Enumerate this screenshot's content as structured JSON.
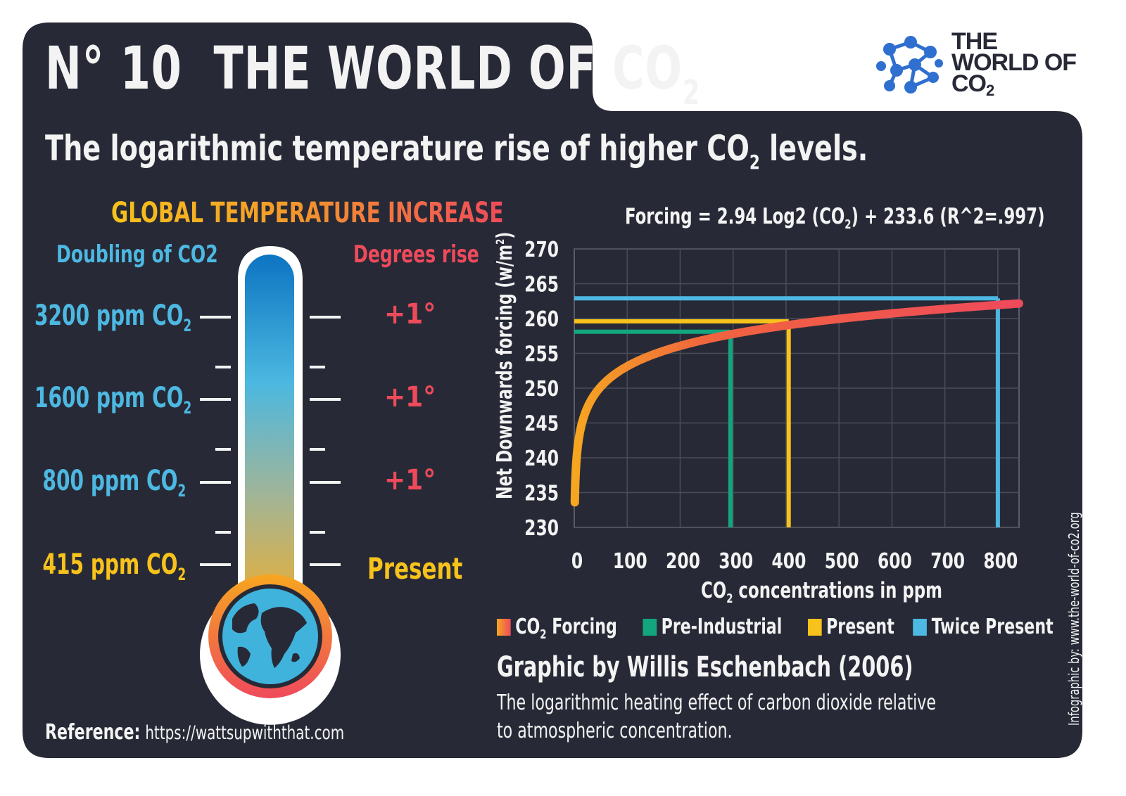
{
  "header": {
    "number": "N° 10",
    "title_main": "THE WORLD OF CO",
    "title_sub": "2",
    "logo_line1": "THE",
    "logo_line2": "WORLD OF",
    "logo_line3": "CO",
    "logo_sub": "2"
  },
  "subtitle": {
    "before": "The logarithmic temperature rise of higher CO",
    "sub": "2",
    "after": " levels."
  },
  "thermometer": {
    "title": "GLOBAL TEMPERATURE INCREASE",
    "left_header": "Doubling of CO2",
    "right_header": "Degrees rise",
    "levels": [
      {
        "label": "3200 ppm CO",
        "sub": "2",
        "rise": "+1°"
      },
      {
        "label": "1600 ppm CO",
        "sub": "2",
        "rise": "+1°"
      },
      {
        "label": "800 ppm CO",
        "sub": "2",
        "rise": "+1°"
      },
      {
        "label": "415 ppm CO",
        "sub": "2",
        "rise": "Present"
      }
    ],
    "icon": "earth-globe-icon"
  },
  "reference": {
    "label": "Reference:",
    "url": "https://wattsupwiththat.com"
  },
  "chart_data": {
    "type": "line",
    "title": "Forcing = 2.94 Log2 (CO2) + 233.6 (R^2=.997)",
    "title_parts": {
      "a": "Forcing = 2.94 Log2 (CO",
      "sub": "2",
      "b": ") + 233.6 (R^2=.997)"
    },
    "xlabel": "CO2 concentrations in ppm",
    "xlabel_parts": {
      "a": "CO",
      "sub": "2",
      "b": " concentrations in ppm"
    },
    "ylabel": "Net Downwards forcing (w/m2)",
    "ylabel_parts": {
      "a": "Net Downwards forcing (w/m",
      "sup": "2",
      "b": ")"
    },
    "xlim": [
      0,
      840
    ],
    "ylim": [
      230,
      270
    ],
    "xticks": [
      0,
      100,
      200,
      300,
      400,
      500,
      600,
      700,
      800
    ],
    "yticks": [
      230,
      235,
      240,
      245,
      250,
      255,
      260,
      265,
      270
    ],
    "grid": true,
    "curve": {
      "name": "CO2 Forcing",
      "coef": 2.94,
      "intercept": 233.6,
      "x_start": 1,
      "x_end": 840
    },
    "series": [
      {
        "name": "Pre-Industrial",
        "x": 295,
        "y": 258.1,
        "color": "#13a67e"
      },
      {
        "name": "Present",
        "x": 405,
        "y": 259.6,
        "color": "#f7c21b"
      },
      {
        "name": "Twice Present",
        "x": 800,
        "y": 262.9,
        "color": "#4db8e2"
      }
    ],
    "legend": {
      "position": "bottom",
      "items": [
        {
          "a": "CO",
          "sub": "2",
          "b": " Forcing",
          "color": "#ef6a3a"
        },
        {
          "a": "Pre-Industrial",
          "sub": "",
          "b": "",
          "color": "#13a67e"
        },
        {
          "a": "Present",
          "sub": "",
          "b": "",
          "color": "#f7c21b"
        },
        {
          "a": "Twice Present",
          "sub": "",
          "b": "",
          "color": "#4db8e2"
        }
      ]
    }
  },
  "credit": {
    "heading": "Graphic by Willis Eschenbach (2006)",
    "line1": "The logarithmic heating effect of carbon dioxide relative",
    "line2": "to atmospheric concentration."
  },
  "side_note": "Infographic by: www.the-world-of-co2.org",
  "colors": {
    "panel": "#272a36",
    "accent_blue": "#4db8e2",
    "accent_red": "#ef4a5b",
    "accent_gold": "#f7c21b",
    "accent_green": "#13a67e"
  }
}
